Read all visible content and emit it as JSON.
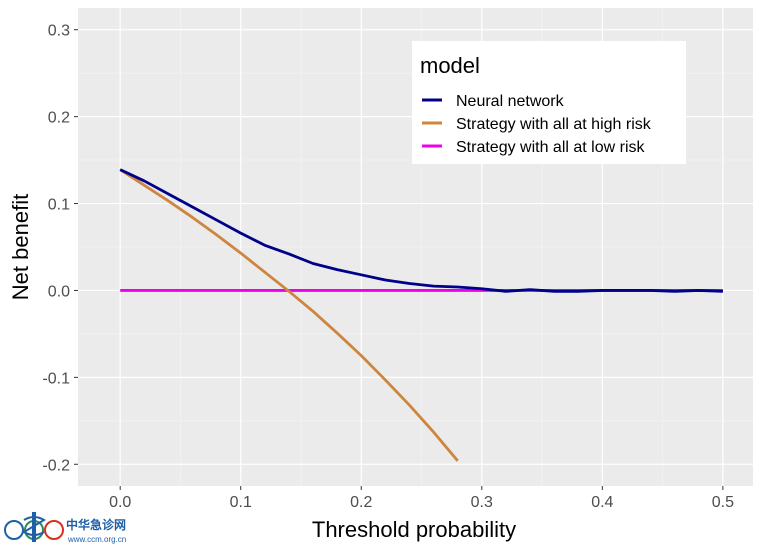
{
  "chart_data": {
    "type": "line",
    "xlabel": "Threshold probability",
    "ylabel": "Net benefit",
    "xlim": [
      -0.035,
      0.525
    ],
    "ylim": [
      -0.225,
      0.325
    ],
    "x_ticks": [
      0.0,
      0.1,
      0.2,
      0.3,
      0.4,
      0.5
    ],
    "x_tick_labels": [
      "0.0",
      "0.1",
      "0.2",
      "0.3",
      "0.4",
      "0.5"
    ],
    "y_ticks": [
      -0.2,
      -0.1,
      0.0,
      0.1,
      0.2,
      0.3
    ],
    "y_tick_labels": [
      "-0.2",
      "-0.1",
      "0.0",
      "0.1",
      "0.2",
      "0.3"
    ],
    "grid": true,
    "legend": {
      "title": "model",
      "position": "top-right",
      "entries": [
        "Neural network",
        "Strategy with all at high risk",
        "Strategy with all at low risk"
      ]
    },
    "series": [
      {
        "name": "Neural network",
        "color": "#00008B",
        "x": [
          0.0,
          0.02,
          0.04,
          0.06,
          0.08,
          0.1,
          0.12,
          0.14,
          0.16,
          0.18,
          0.2,
          0.22,
          0.24,
          0.26,
          0.28,
          0.3,
          0.32,
          0.34,
          0.36,
          0.38,
          0.4,
          0.42,
          0.44,
          0.46,
          0.48,
          0.5
        ],
        "y": [
          0.139,
          0.126,
          0.111,
          0.096,
          0.081,
          0.066,
          0.052,
          0.042,
          0.031,
          0.024,
          0.018,
          0.012,
          0.008,
          0.005,
          0.004,
          0.002,
          -0.001,
          0.001,
          -0.001,
          -0.001,
          0.0,
          0.0,
          0.0,
          -0.001,
          0.0,
          -0.001
        ]
      },
      {
        "name": "Strategy with all at high risk",
        "color": "#CD853F",
        "x": [
          0.0,
          0.02,
          0.04,
          0.06,
          0.08,
          0.1,
          0.12,
          0.14,
          0.16,
          0.18,
          0.2,
          0.22,
          0.24,
          0.26,
          0.28
        ],
        "y": [
          0.139,
          0.121,
          0.103,
          0.084,
          0.064,
          0.043,
          0.021,
          -0.001,
          -0.024,
          -0.049,
          -0.075,
          -0.103,
          -0.132,
          -0.163,
          -0.196
        ]
      },
      {
        "name": "Strategy with all at low risk",
        "color": "#EE00EE",
        "x": [
          0.0,
          0.5
        ],
        "y": [
          0.0,
          0.0
        ]
      }
    ]
  },
  "watermark": {
    "text": "中华急诊网",
    "url": "www.ccm.org.cn"
  }
}
